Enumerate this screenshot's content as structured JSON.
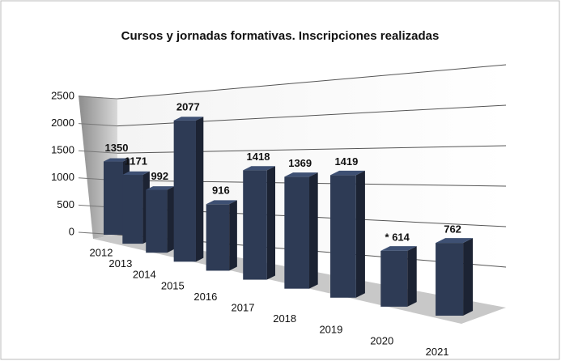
{
  "chart_data": {
    "type": "bar3d",
    "title": "Cursos y jornadas formativas. Inscripciones realizadas",
    "categories": [
      "2012",
      "2013",
      "2014",
      "2015",
      "2016",
      "2017",
      "2018",
      "2019",
      "2020",
      "2021"
    ],
    "values": [
      1350,
      1171,
      992,
      2077,
      916,
      1418,
      1369,
      1419,
      614,
      762
    ],
    "value_labels": [
      "1350",
      "1171",
      "992",
      "2077",
      "916",
      "1418",
      "1369",
      "1419",
      "* 614",
      "762"
    ],
    "color": "#2e3b55",
    "ylim": [
      0,
      2500
    ],
    "yticks": [
      0,
      500,
      1000,
      1500,
      2000,
      2500
    ],
    "grid": true
  }
}
